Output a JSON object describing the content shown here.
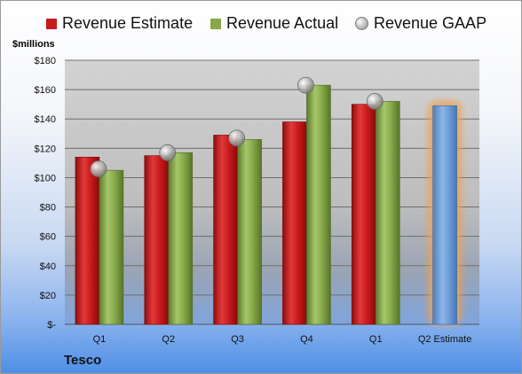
{
  "legend": {
    "estimate": "Revenue Estimate",
    "actual": "Revenue Actual",
    "gaap": "Revenue GAAP"
  },
  "unit_label": "$millions",
  "company": "Tesco",
  "colors": {
    "estimate": "#c8191b",
    "actual": "#86a84a",
    "gaap": "#b0b0b0",
    "forecast": "#6f9fd8",
    "forecast_glow": "#f0a050",
    "plot_bg": "#cfcfcf"
  },
  "chart_data": {
    "type": "bar",
    "categories": [
      "Q1",
      "Q2",
      "Q3",
      "Q4",
      "Q1",
      "Q2 Estimate"
    ],
    "ylim": [
      0,
      180
    ],
    "yticks": [
      "$-",
      "$20",
      "$40",
      "$60",
      "$80",
      "$100",
      "$120",
      "$140",
      "$160",
      "$180"
    ],
    "grid": true,
    "legend_position": "top",
    "series": [
      {
        "name": "Revenue Estimate",
        "values": [
          114,
          115,
          129,
          138,
          150,
          149
        ]
      },
      {
        "name": "Revenue Actual",
        "values": [
          105,
          117,
          126,
          163,
          152,
          null
        ]
      },
      {
        "name": "Revenue GAAP",
        "values": [
          106,
          117,
          127,
          163,
          152,
          null
        ]
      }
    ]
  }
}
